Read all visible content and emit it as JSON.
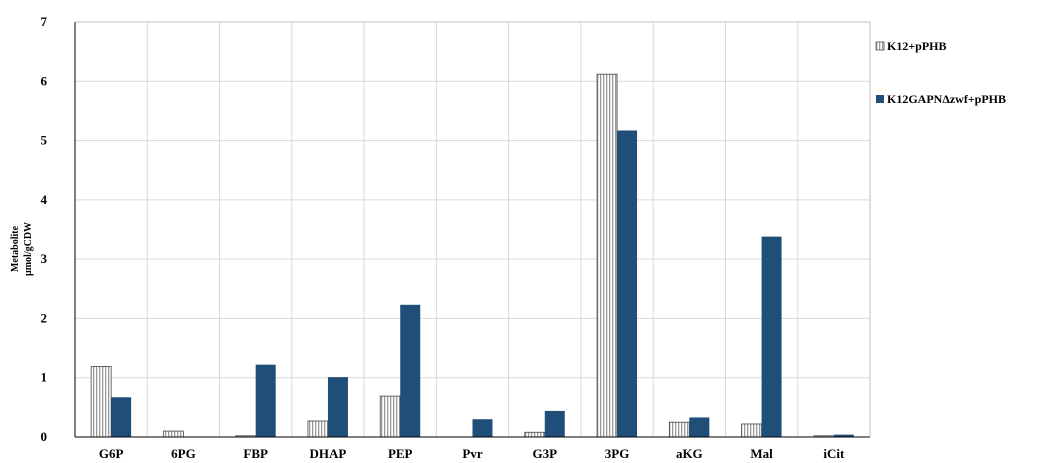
{
  "chart_data": {
    "type": "bar",
    "categories": [
      "G6P",
      "6PG",
      "FBP",
      "DHAP",
      "PEP",
      "Pvr",
      "G3P",
      "3PG",
      "aKG",
      "Mal",
      "iCit"
    ],
    "series": [
      {
        "name": "K12+pPHB",
        "values": [
          1.19,
          0.1,
          0.02,
          0.27,
          0.69,
          0.0,
          0.08,
          6.12,
          0.25,
          0.22,
          0.02
        ],
        "color": "#ffffff",
        "pattern": "vertical-stripes"
      },
      {
        "name": "K12GAPNΔzwf+pPHB",
        "values": [
          0.67,
          0.0,
          1.22,
          1.01,
          2.23,
          0.3,
          0.44,
          5.17,
          0.33,
          3.38,
          0.04
        ],
        "color": "#1f4e79"
      }
    ],
    "ylabel_line1": "Metabolite",
    "ylabel_line2": "µmol/gCDW",
    "ylim": [
      0,
      7
    ],
    "yticks": [
      "0",
      "1",
      "2",
      "3",
      "4",
      "5",
      "6",
      "7"
    ],
    "grid": true,
    "legend_position": "right"
  }
}
